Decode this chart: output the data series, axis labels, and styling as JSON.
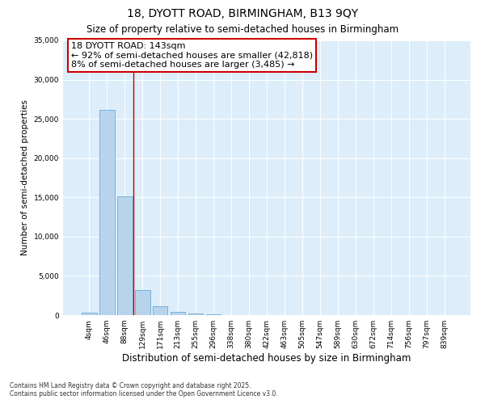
{
  "title": "18, DYOTT ROAD, BIRMINGHAM, B13 9QY",
  "subtitle": "Size of property relative to semi-detached houses in Birmingham",
  "xlabel": "Distribution of semi-detached houses by size in Birmingham",
  "ylabel": "Number of semi-detached properties",
  "categories": [
    "4sqm",
    "46sqm",
    "88sqm",
    "129sqm",
    "171sqm",
    "213sqm",
    "255sqm",
    "296sqm",
    "338sqm",
    "380sqm",
    "422sqm",
    "463sqm",
    "505sqm",
    "547sqm",
    "589sqm",
    "630sqm",
    "672sqm",
    "714sqm",
    "756sqm",
    "797sqm",
    "839sqm"
  ],
  "values": [
    350,
    26100,
    15100,
    3200,
    1150,
    450,
    200,
    80,
    0,
    0,
    0,
    0,
    0,
    0,
    0,
    0,
    0,
    0,
    0,
    0,
    0
  ],
  "bar_color": "#b8d4ed",
  "bar_edge_color": "#6aaad4",
  "vline_color": "#cc0000",
  "annotation_line1": "18 DYOTT ROAD: 143sqm",
  "annotation_line2": "← 92% of semi-detached houses are smaller (42,818)",
  "annotation_line3": "8% of semi-detached houses are larger (3,485) →",
  "annotation_box_color": "white",
  "annotation_box_edge_color": "#cc0000",
  "ylim": [
    0,
    35000
  ],
  "yticks": [
    0,
    5000,
    10000,
    15000,
    20000,
    25000,
    30000,
    35000
  ],
  "bg_color": "#ddeefa",
  "footer1": "Contains HM Land Registry data © Crown copyright and database right 2025.",
  "footer2": "Contains public sector information licensed under the Open Government Licence v3.0.",
  "title_fontsize": 10,
  "subtitle_fontsize": 8.5,
  "tick_fontsize": 6.5,
  "ylabel_fontsize": 7.5,
  "xlabel_fontsize": 8.5,
  "annotation_fontsize": 8,
  "footer_fontsize": 5.5
}
